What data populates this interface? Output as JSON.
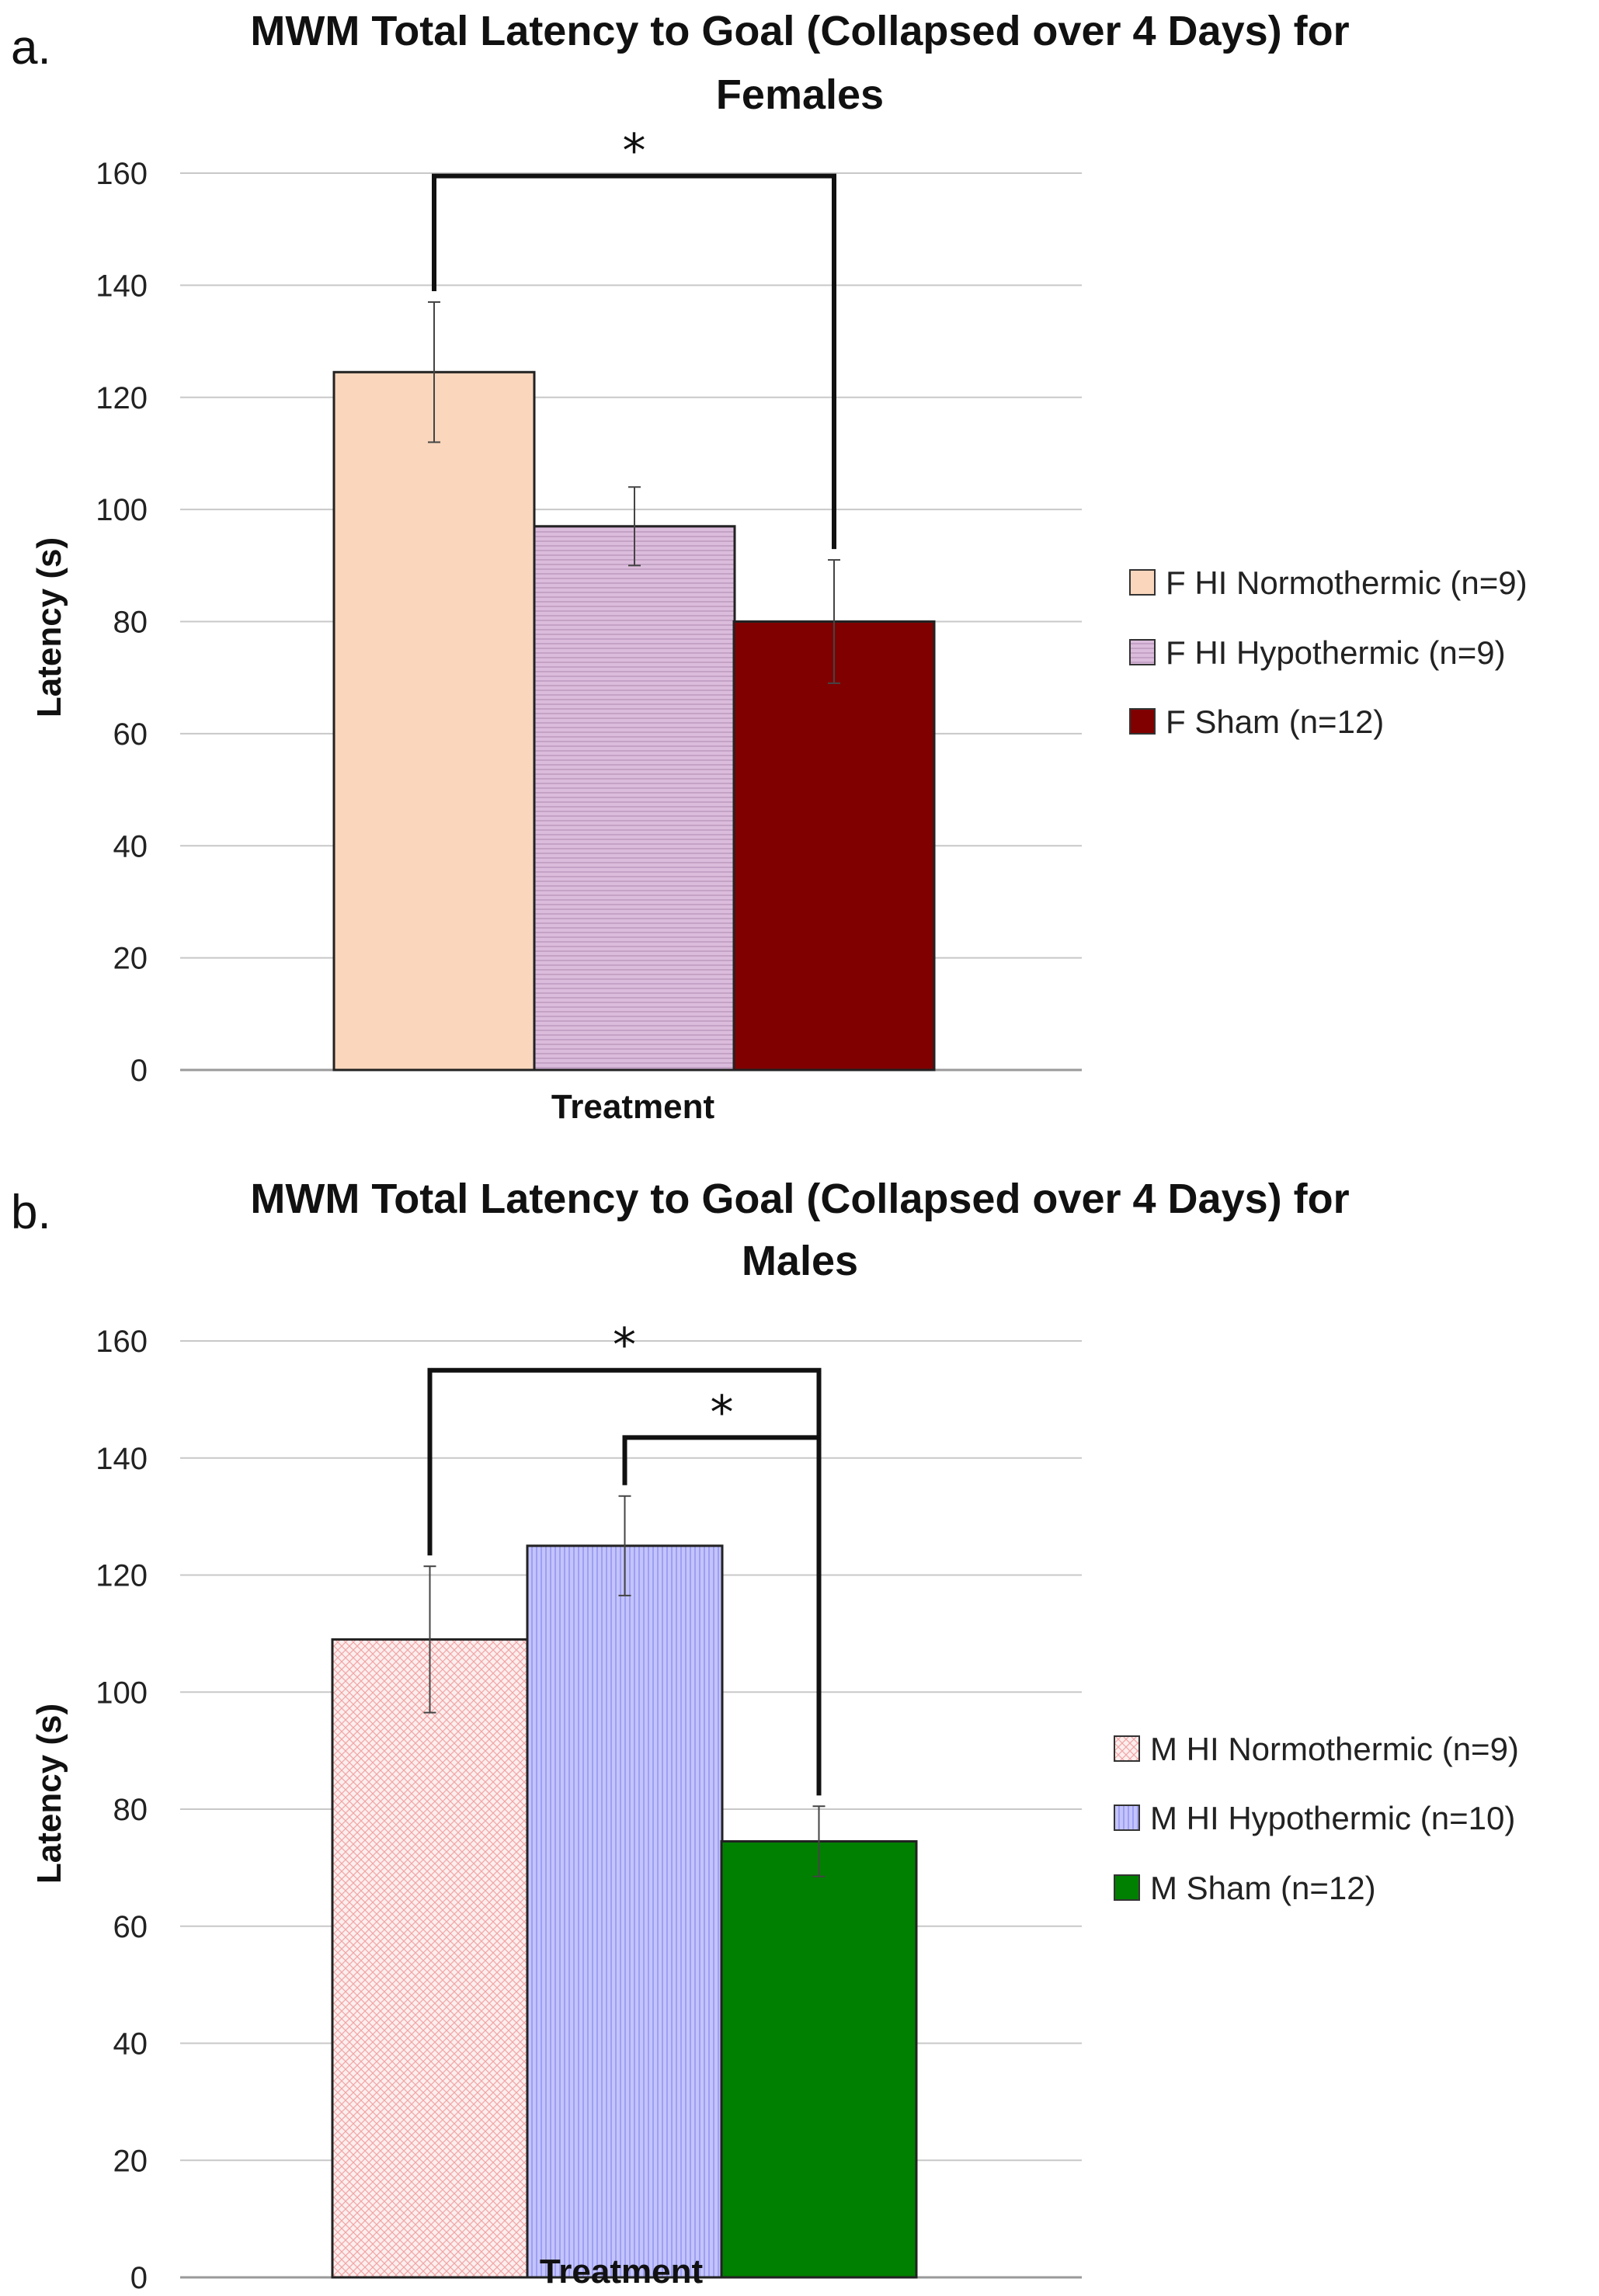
{
  "chart_data": [
    {
      "type": "bar",
      "panel_label": "a.",
      "title_lines": [
        "MWM Total Latency to Goal (Collapsed over 4 Days) for",
        "Females"
      ],
      "xlabel": "Treatment",
      "ylabel": "Latency (s)",
      "ylim": [
        0,
        160
      ],
      "yticks": [
        0,
        20,
        40,
        60,
        80,
        100,
        120,
        140,
        160
      ],
      "grid": true,
      "legend_position": "right",
      "categories": [
        "Treatment"
      ],
      "series": [
        {
          "name": "F HI Normothermic (n=9)",
          "values": [
            124.5
          ],
          "error": [
            12.5
          ],
          "color": "#f9d6bc",
          "pattern": "none"
        },
        {
          "name": "F HI Hypothermic (n=9)",
          "values": [
            97
          ],
          "error": [
            7
          ],
          "color": "#dcbcdc",
          "pattern": "hlines"
        },
        {
          "name": "F Sham (n=12)",
          "values": [
            80
          ],
          "error": [
            11
          ],
          "color": "#800000",
          "pattern": "none"
        }
      ],
      "significance": [
        {
          "from": 0,
          "to": 2,
          "level": 159.5,
          "label": "*"
        }
      ]
    },
    {
      "type": "bar",
      "panel_label": "b.",
      "title_lines": [
        "MWM Total Latency to Goal (Collapsed over 4 Days) for",
        "Males"
      ],
      "xlabel": "Treatment",
      "ylabel": "Latency (s)",
      "ylim": [
        0,
        160
      ],
      "yticks": [
        0,
        20,
        40,
        60,
        80,
        100,
        120,
        140,
        160
      ],
      "grid": true,
      "legend_position": "right",
      "categories": [
        "Treatment"
      ],
      "series": [
        {
          "name": "M HI Normothermic (n=9)",
          "values": [
            109
          ],
          "error": [
            12.5
          ],
          "color": "#fadede",
          "pattern": "crosshatch"
        },
        {
          "name": "M HI Hypothermic (n=10)",
          "values": [
            125
          ],
          "error": [
            8.5
          ],
          "color": "#bfc0fb",
          "pattern": "vlines"
        },
        {
          "name": "M Sham (n=12)",
          "values": [
            74.5
          ],
          "error": [
            6
          ],
          "color": "#008000",
          "pattern": "none"
        }
      ],
      "significance": [
        {
          "from": 0,
          "to": 2,
          "level": 155,
          "label": "*"
        },
        {
          "from": 1,
          "to": 2,
          "level": 143.5,
          "label": "*"
        }
      ]
    }
  ]
}
